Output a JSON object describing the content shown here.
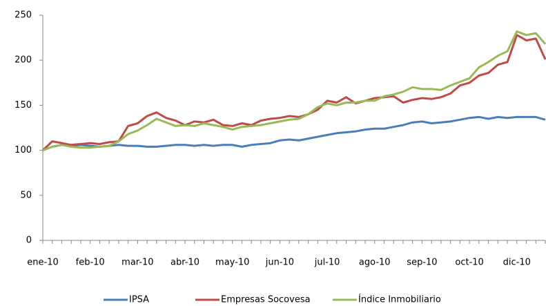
{
  "chart_data": {
    "type": "line",
    "categories": [
      "ene-10",
      null,
      null,
      null,
      null,
      "feb-10",
      null,
      null,
      null,
      null,
      "mar-10",
      null,
      null,
      null,
      null,
      "abr-10",
      null,
      null,
      null,
      null,
      "may-10",
      null,
      null,
      null,
      null,
      "jun-10",
      null,
      null,
      null,
      null,
      "jul-10",
      null,
      null,
      null,
      null,
      "ago-10",
      null,
      null,
      null,
      null,
      "sep-10",
      null,
      null,
      null,
      null,
      "oct-10",
      null,
      null,
      null,
      null,
      "dic-10",
      null,
      null,
      null
    ],
    "series": [
      {
        "name": "IPSA",
        "color": "#4a7ebb",
        "values": [
          100,
          104,
          106,
          105,
          106,
          105,
          104,
          105,
          106,
          105,
          105,
          104,
          104,
          105,
          106,
          106,
          105,
          106,
          105,
          106,
          106,
          104,
          106,
          107,
          108,
          111,
          112,
          111,
          113,
          115,
          117,
          119,
          120,
          121,
          123,
          124,
          124,
          126,
          128,
          131,
          132,
          130,
          131,
          132,
          134,
          136,
          137,
          135,
          137,
          136,
          137,
          137,
          137,
          134
        ]
      },
      {
        "name": "Empresas Socovesa",
        "color": "#be4b48",
        "values": [
          100,
          110,
          108,
          106,
          107,
          108,
          107,
          109,
          110,
          127,
          130,
          138,
          142,
          136,
          133,
          128,
          132,
          131,
          134,
          128,
          127,
          130,
          128,
          133,
          135,
          136,
          138,
          137,
          140,
          145,
          155,
          153,
          159,
          152,
          155,
          158,
          159,
          160,
          153,
          156,
          158,
          157,
          159,
          163,
          172,
          175,
          183,
          186,
          195,
          198,
          228,
          222,
          224,
          201
        ]
      },
      {
        "name": "Índice Inmobiliario",
        "color": "#98b954",
        "values": [
          100,
          104,
          106,
          104,
          103,
          103,
          104,
          105,
          110,
          118,
          122,
          128,
          135,
          131,
          127,
          128,
          127,
          130,
          128,
          126,
          123,
          126,
          127,
          128,
          130,
          132,
          134,
          135,
          140,
          148,
          152,
          150,
          153,
          153,
          155,
          155,
          160,
          162,
          165,
          170,
          168,
          168,
          167,
          172,
          176,
          180,
          192,
          198,
          205,
          210,
          232,
          228,
          230,
          218
        ]
      }
    ],
    "ylim": [
      0,
      250
    ],
    "yticks": [
      0,
      50,
      100,
      150,
      200,
      250
    ],
    "grid": false,
    "legend": "bottom"
  }
}
